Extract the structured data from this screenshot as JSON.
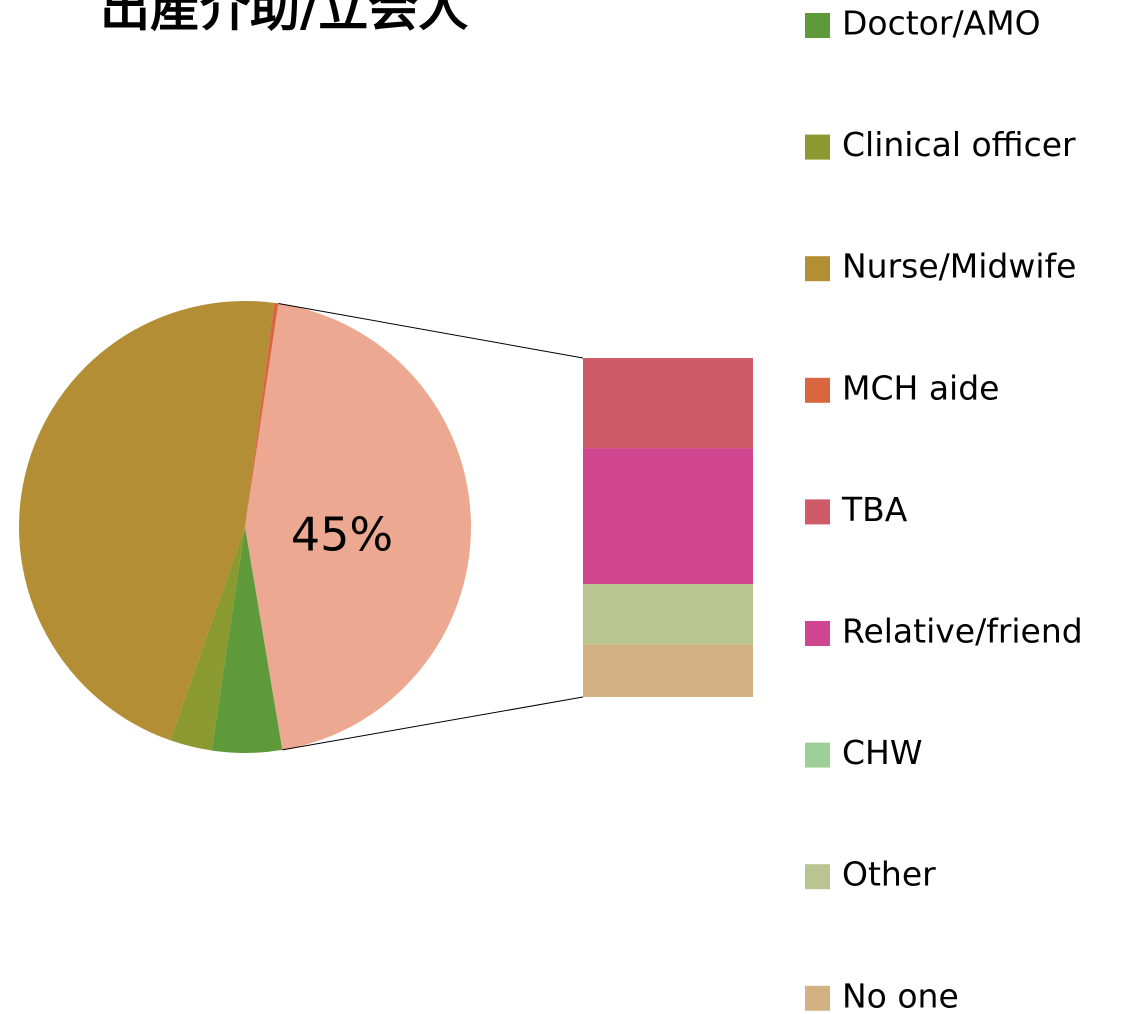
{
  "chart_data": {
    "type": "pie_of_bar",
    "title": "出産介助/立会人",
    "categories": [
      "Doctor/AMO",
      "Clinical officer",
      "Nurse/Midwife",
      "MCH aide",
      "TBA",
      "Relative/friend",
      "CHW",
      "Other",
      "No one"
    ],
    "values": [
      5,
      3,
      46.7,
      0.3,
      12,
      18,
      0,
      8,
      7
    ],
    "colors": [
      "#5e9a3a",
      "#8a9a30",
      "#b38e35",
      "#d8663e",
      "#cf5a68",
      "#d14690",
      "#9fcf98",
      "#b8c590",
      "#d2b283"
    ],
    "secondary_count": 5,
    "secondary_value": 45,
    "secondary_value_label": "45%",
    "secondary_color": "#eca890",
    "legend": "right"
  }
}
